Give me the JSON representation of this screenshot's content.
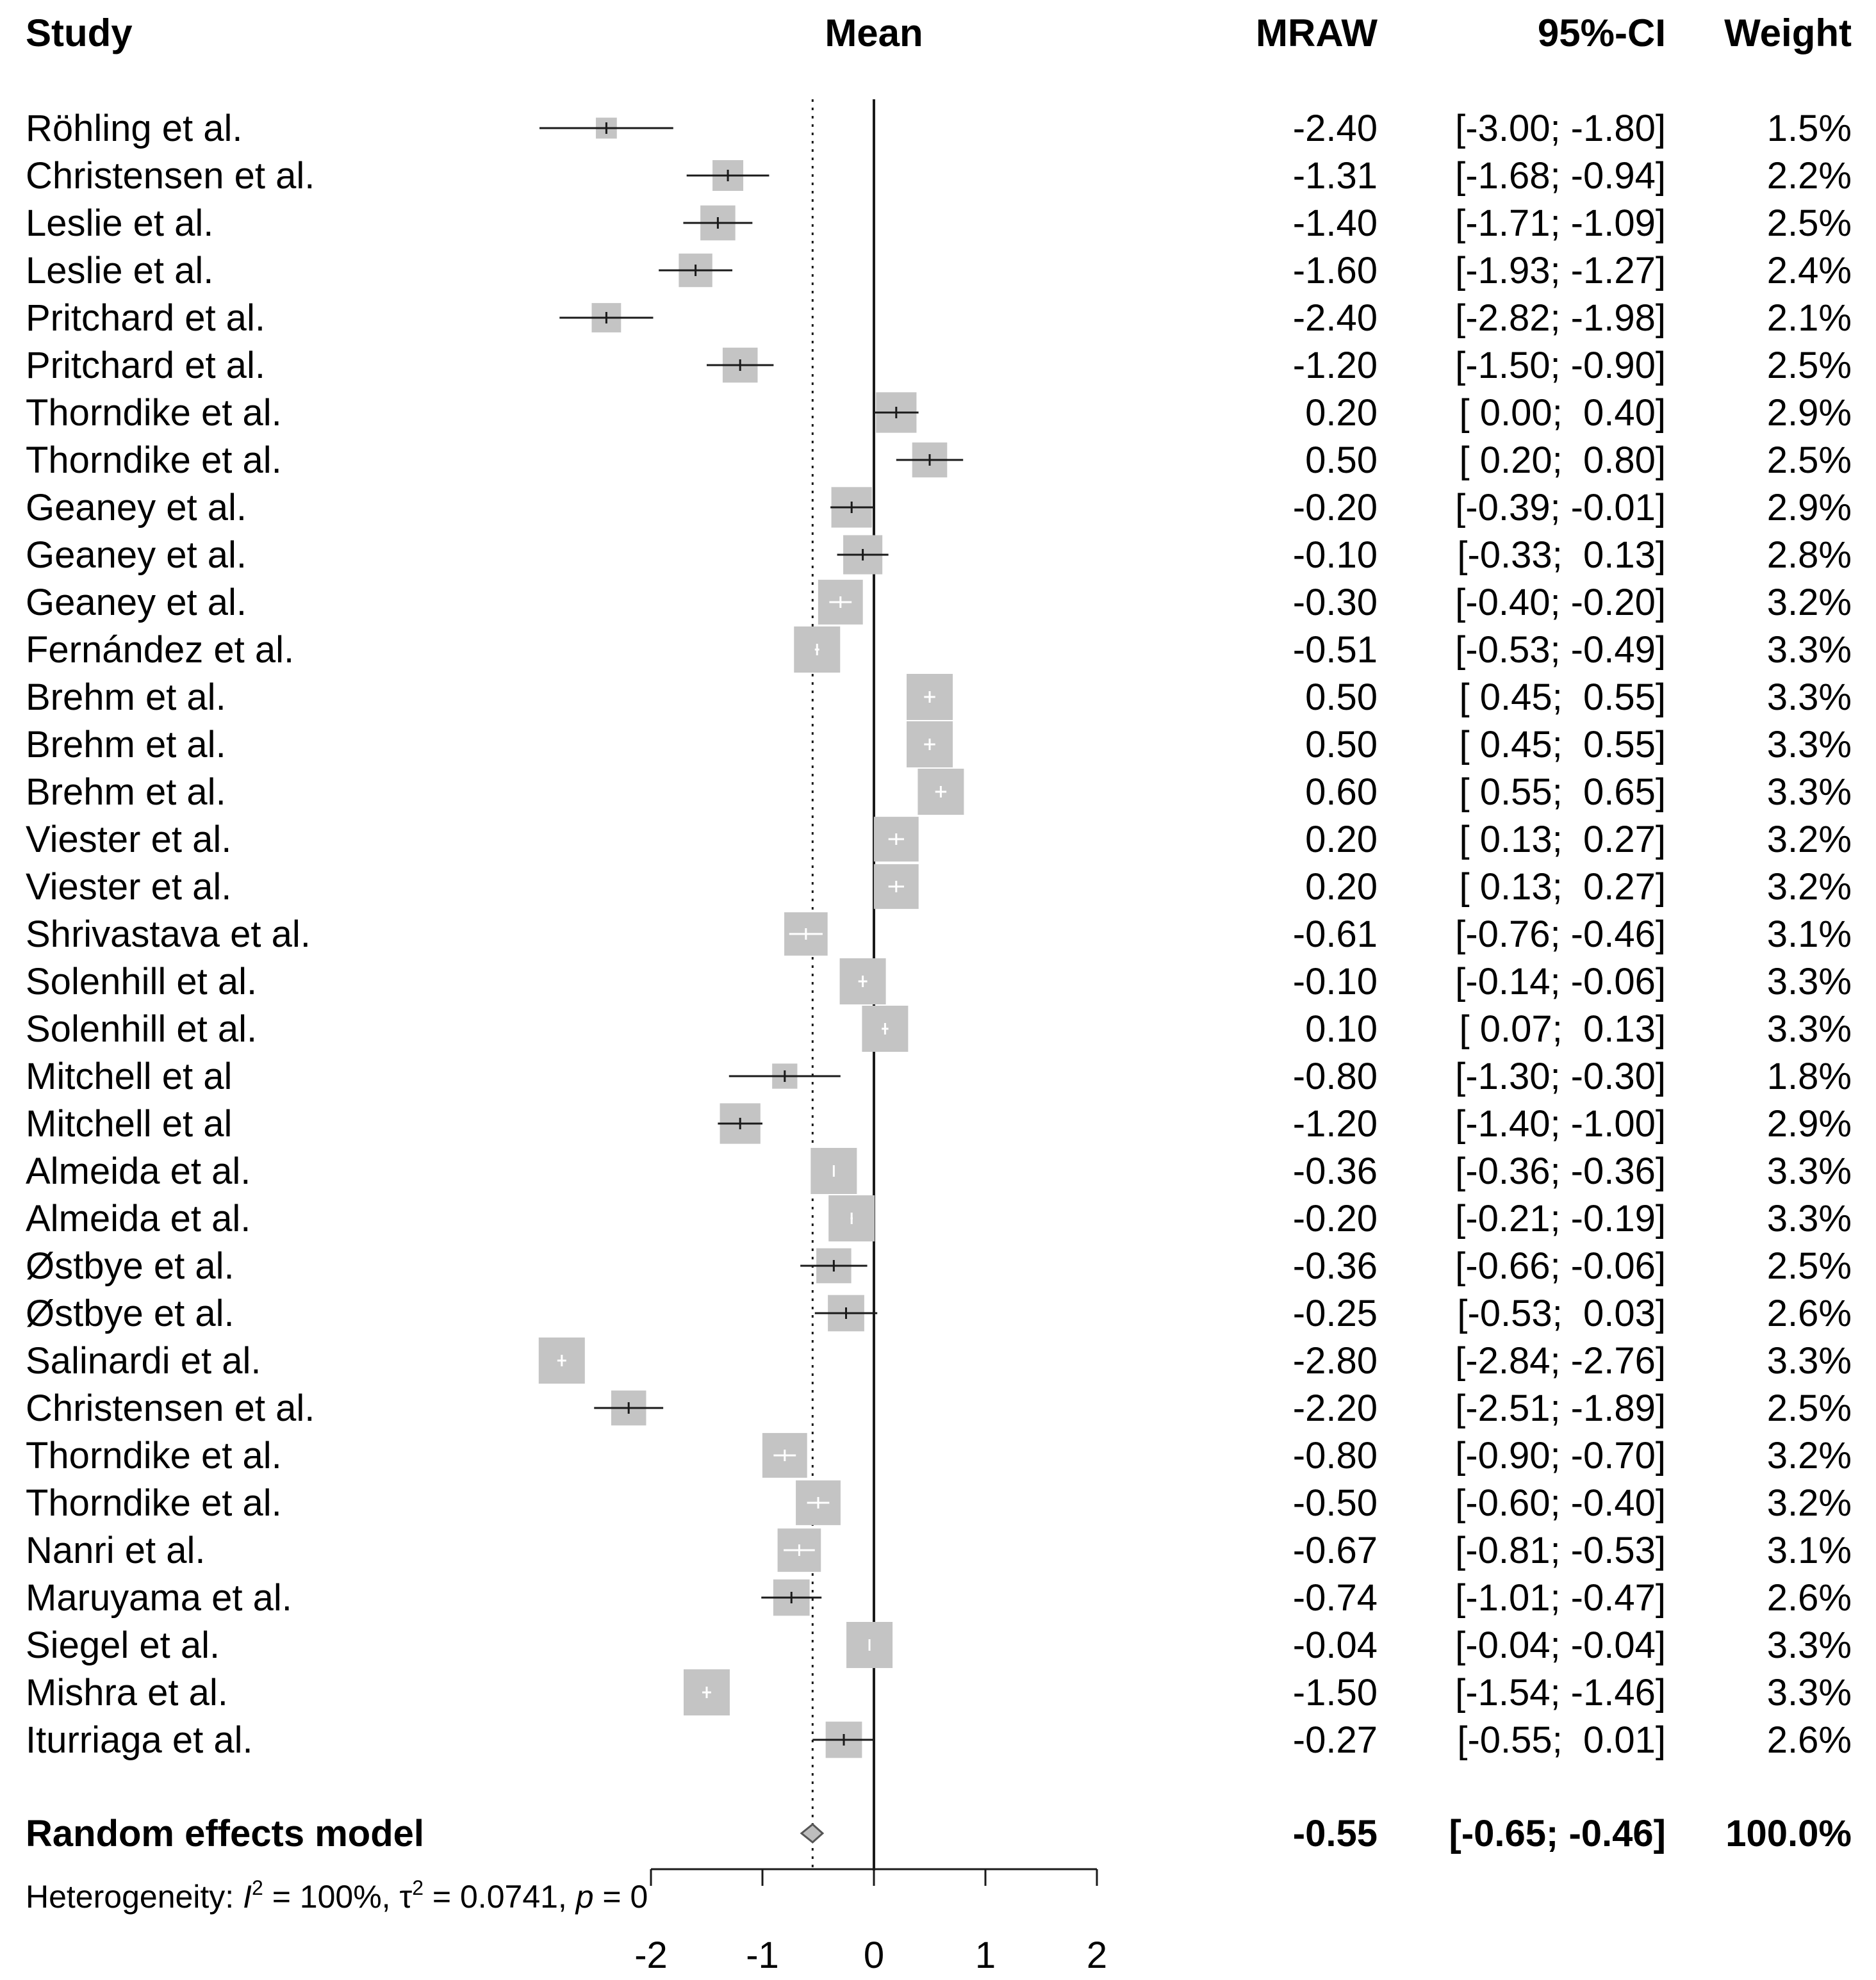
{
  "chart_data": {
    "type": "forest",
    "headers": {
      "study": "Study",
      "mean": "Mean",
      "mraw": "MRAW",
      "ci": "95%-CI",
      "weight": "Weight"
    },
    "xlim": [
      -2,
      2
    ],
    "ticks": [
      "-2",
      "-1",
      "0",
      "1",
      "2"
    ],
    "tick_values": [
      -2,
      -1,
      0,
      1,
      2
    ],
    "reference_line": 0,
    "pooled_line": -0.55,
    "studies": [
      {
        "name": "Röhling et al.",
        "mean": -2.4,
        "lower": -3.0,
        "upper": -1.8,
        "mraw": "-2.40",
        "ci": "[-3.00; -1.80]",
        "weight": "1.5%",
        "w": 1.5
      },
      {
        "name": "Christensen et al.",
        "mean": -1.31,
        "lower": -1.68,
        "upper": -0.94,
        "mraw": "-1.31",
        "ci": "[-1.68; -0.94]",
        "weight": "2.2%",
        "w": 2.2
      },
      {
        "name": "Leslie et al.",
        "mean": -1.4,
        "lower": -1.71,
        "upper": -1.09,
        "mraw": "-1.40",
        "ci": "[-1.71; -1.09]",
        "weight": "2.5%",
        "w": 2.5
      },
      {
        "name": "Leslie et al.",
        "mean": -1.6,
        "lower": -1.93,
        "upper": -1.27,
        "mraw": "-1.60",
        "ci": "[-1.93; -1.27]",
        "weight": "2.4%",
        "w": 2.4
      },
      {
        "name": "Pritchard et al.",
        "mean": -2.4,
        "lower": -2.82,
        "upper": -1.98,
        "mraw": "-2.40",
        "ci": "[-2.82; -1.98]",
        "weight": "2.1%",
        "w": 2.1
      },
      {
        "name": "Pritchard et al.",
        "mean": -1.2,
        "lower": -1.5,
        "upper": -0.9,
        "mraw": "-1.20",
        "ci": "[-1.50; -0.90]",
        "weight": "2.5%",
        "w": 2.5
      },
      {
        "name": "Thorndike et al.",
        "mean": 0.2,
        "lower": 0.0,
        "upper": 0.4,
        "mraw": "0.20",
        "ci": "[ 0.00;  0.40]",
        "weight": "2.9%",
        "w": 2.9
      },
      {
        "name": "Thorndike et al.",
        "mean": 0.5,
        "lower": 0.2,
        "upper": 0.8,
        "mraw": "0.50",
        "ci": "[ 0.20;  0.80]",
        "weight": "2.5%",
        "w": 2.5
      },
      {
        "name": "Geaney et al.",
        "mean": -0.2,
        "lower": -0.39,
        "upper": -0.01,
        "mraw": "-0.20",
        "ci": "[-0.39; -0.01]",
        "weight": "2.9%",
        "w": 2.9
      },
      {
        "name": "Geaney et al.",
        "mean": -0.1,
        "lower": -0.33,
        "upper": 0.13,
        "mraw": "-0.10",
        "ci": "[-0.33;  0.13]",
        "weight": "2.8%",
        "w": 2.8
      },
      {
        "name": "Geaney et al.",
        "mean": -0.3,
        "lower": -0.4,
        "upper": -0.2,
        "mraw": "-0.30",
        "ci": "[-0.40; -0.20]",
        "weight": "3.2%",
        "w": 3.2
      },
      {
        "name": "Fernández et al.",
        "mean": -0.51,
        "lower": -0.53,
        "upper": -0.49,
        "mraw": "-0.51",
        "ci": "[-0.53; -0.49]",
        "weight": "3.3%",
        "w": 3.3
      },
      {
        "name": "Brehm et al.",
        "mean": 0.5,
        "lower": 0.45,
        "upper": 0.55,
        "mraw": "0.50",
        "ci": "[ 0.45;  0.55]",
        "weight": "3.3%",
        "w": 3.3
      },
      {
        "name": "Brehm et al.",
        "mean": 0.5,
        "lower": 0.45,
        "upper": 0.55,
        "mraw": "0.50",
        "ci": "[ 0.45;  0.55]",
        "weight": "3.3%",
        "w": 3.3
      },
      {
        "name": "Brehm et al.",
        "mean": 0.6,
        "lower": 0.55,
        "upper": 0.65,
        "mraw": "0.60",
        "ci": "[ 0.55;  0.65]",
        "weight": "3.3%",
        "w": 3.3
      },
      {
        "name": "Viester et al.",
        "mean": 0.2,
        "lower": 0.13,
        "upper": 0.27,
        "mraw": "0.20",
        "ci": "[ 0.13;  0.27]",
        "weight": "3.2%",
        "w": 3.2
      },
      {
        "name": "Viester et al.",
        "mean": 0.2,
        "lower": 0.13,
        "upper": 0.27,
        "mraw": "0.20",
        "ci": "[ 0.13;  0.27]",
        "weight": "3.2%",
        "w": 3.2
      },
      {
        "name": "Shrivastava  et al.",
        "mean": -0.61,
        "lower": -0.76,
        "upper": -0.46,
        "mraw": "-0.61",
        "ci": "[-0.76; -0.46]",
        "weight": "3.1%",
        "w": 3.1
      },
      {
        "name": "Solenhill et al.",
        "mean": -0.1,
        "lower": -0.14,
        "upper": -0.06,
        "mraw": "-0.10",
        "ci": "[-0.14; -0.06]",
        "weight": "3.3%",
        "w": 3.3
      },
      {
        "name": "Solenhill et al.",
        "mean": 0.1,
        "lower": 0.07,
        "upper": 0.13,
        "mraw": "0.10",
        "ci": "[ 0.07;  0.13]",
        "weight": "3.3%",
        "w": 3.3
      },
      {
        "name": "Mitchell et al",
        "mean": -0.8,
        "lower": -1.3,
        "upper": -0.3,
        "mraw": "-0.80",
        "ci": "[-1.30; -0.30]",
        "weight": "1.8%",
        "w": 1.8
      },
      {
        "name": "Mitchell et al",
        "mean": -1.2,
        "lower": -1.4,
        "upper": -1.0,
        "mraw": "-1.20",
        "ci": "[-1.40; -1.00]",
        "weight": "2.9%",
        "w": 2.9
      },
      {
        "name": "Almeida et al.",
        "mean": -0.36,
        "lower": -0.36,
        "upper": -0.36,
        "mraw": "-0.36",
        "ci": "[-0.36; -0.36]",
        "weight": "3.3%",
        "w": 3.3
      },
      {
        "name": "Almeida et al.",
        "mean": -0.2,
        "lower": -0.21,
        "upper": -0.19,
        "mraw": "-0.20",
        "ci": "[-0.21; -0.19]",
        "weight": "3.3%",
        "w": 3.3
      },
      {
        "name": "Østbye et al.",
        "mean": -0.36,
        "lower": -0.66,
        "upper": -0.06,
        "mraw": "-0.36",
        "ci": "[-0.66; -0.06]",
        "weight": "2.5%",
        "w": 2.5
      },
      {
        "name": "Østbye et al.",
        "mean": -0.25,
        "lower": -0.53,
        "upper": 0.03,
        "mraw": "-0.25",
        "ci": "[-0.53;  0.03]",
        "weight": "2.6%",
        "w": 2.6
      },
      {
        "name": "Salinardi et al.",
        "mean": -2.8,
        "lower": -2.84,
        "upper": -2.76,
        "mraw": "-2.80",
        "ci": "[-2.84; -2.76]",
        "weight": "3.3%",
        "w": 3.3
      },
      {
        "name": "Christensen et al.",
        "mean": -2.2,
        "lower": -2.51,
        "upper": -1.89,
        "mraw": "-2.20",
        "ci": "[-2.51; -1.89]",
        "weight": "2.5%",
        "w": 2.5
      },
      {
        "name": "Thorndike et al.",
        "mean": -0.8,
        "lower": -0.9,
        "upper": -0.7,
        "mraw": "-0.80",
        "ci": "[-0.90; -0.70]",
        "weight": "3.2%",
        "w": 3.2
      },
      {
        "name": "Thorndike et al.",
        "mean": -0.5,
        "lower": -0.6,
        "upper": -0.4,
        "mraw": "-0.50",
        "ci": "[-0.60; -0.40]",
        "weight": "3.2%",
        "w": 3.2
      },
      {
        "name": "Nanri et al.",
        "mean": -0.67,
        "lower": -0.81,
        "upper": -0.53,
        "mraw": "-0.67",
        "ci": "[-0.81; -0.53]",
        "weight": "3.1%",
        "w": 3.1
      },
      {
        "name": "Maruyama et al.",
        "mean": -0.74,
        "lower": -1.01,
        "upper": -0.47,
        "mraw": "-0.74",
        "ci": "[-1.01; -0.47]",
        "weight": "2.6%",
        "w": 2.6
      },
      {
        "name": "Siegel et al.",
        "mean": -0.04,
        "lower": -0.04,
        "upper": -0.04,
        "mraw": "-0.04",
        "ci": "[-0.04; -0.04]",
        "weight": "3.3%",
        "w": 3.3
      },
      {
        "name": "Mishra et al.",
        "mean": -1.5,
        "lower": -1.54,
        "upper": -1.46,
        "mraw": "-1.50",
        "ci": "[-1.54; -1.46]",
        "weight": "3.3%",
        "w": 3.3
      },
      {
        "name": "Iturriaga et al.",
        "mean": -0.27,
        "lower": -0.55,
        "upper": 0.01,
        "mraw": "-0.27",
        "ci": "[-0.55;  0.01]",
        "weight": "2.6%",
        "w": 2.6
      }
    ],
    "pooled": {
      "name": "Random effects model",
      "mean": -0.55,
      "lower": -0.65,
      "upper": -0.46,
      "mraw": "-0.55",
      "ci": "[-0.65; -0.46]",
      "weight": "100.0%"
    },
    "heterogeneity": {
      "prefix": "Heterogeneity: ",
      "i2_symbol": "I",
      "i2_sup": "2",
      "i2_value": " = 100%, ",
      "tau_symbol": "τ",
      "tau_sup": "2",
      "tau_value": " = 0.0741, ",
      "p_symbol": "p",
      "p_value": " = 0"
    },
    "colors": {
      "box": "#c4c4c4",
      "line": "#1a1a1a",
      "text": "#1a1a1a"
    }
  }
}
